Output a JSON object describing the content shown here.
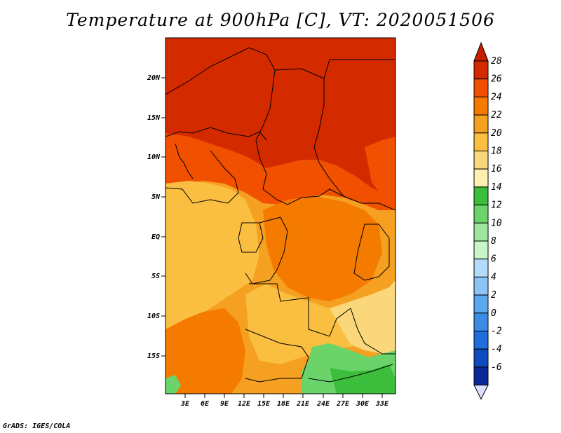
{
  "title": "Temperature at 900hPa [C], VT: 2020051506",
  "credit": "GrADS: IGES/COLA",
  "lat_ticks": [
    "20N",
    "15N",
    "10N",
    "5N",
    "EQ",
    "5S",
    "10S",
    "15S"
  ],
  "lon_ticks": [
    "3E",
    "6E",
    "9E",
    "12E",
    "15E",
    "18E",
    "21E",
    "24E",
    "27E",
    "30E",
    "33E"
  ],
  "colorbar": {
    "labels": [
      "28",
      "26",
      "24",
      "22",
      "20",
      "18",
      "16",
      "14",
      "12",
      "10",
      "8",
      "6",
      "4",
      "2",
      "0",
      "-2",
      "-4",
      "-6"
    ],
    "colors": [
      "#d42a00",
      "#f05000",
      "#f57a00",
      "#f5a020",
      "#fabe40",
      "#fad77a",
      "#fff0b0",
      "#3cbe3c",
      "#6ad46a",
      "#9ee69e",
      "#c8f5c8",
      "#b4dcfa",
      "#8cc4f5",
      "#5aa8f0",
      "#3c8ce6",
      "#1e6edc",
      "#0f4bc0",
      "#0a2896"
    ],
    "top_color": "#c81e00",
    "bottom_color": "#dce0ff"
  }
}
